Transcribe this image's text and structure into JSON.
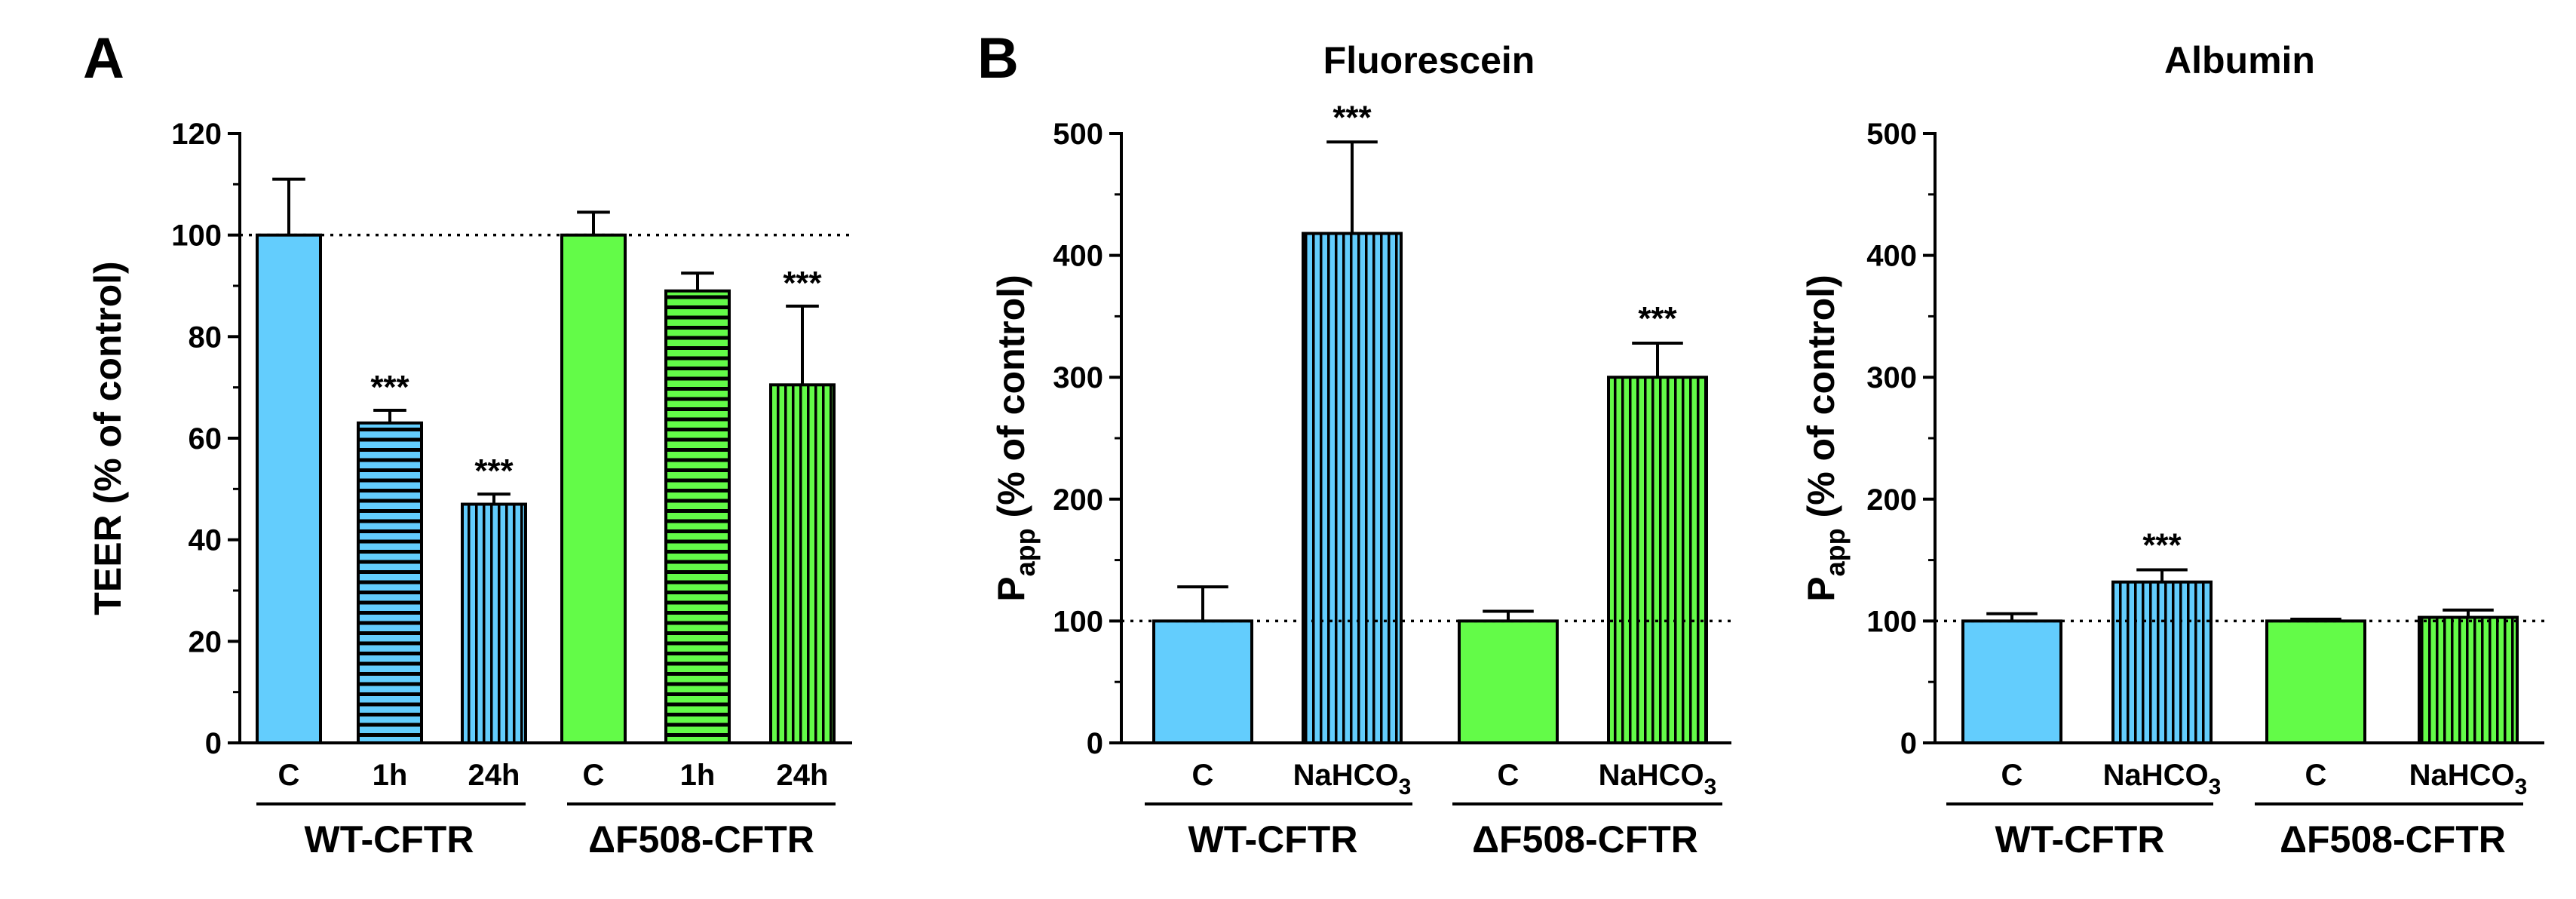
{
  "colors": {
    "WT": "#63cdfd",
    "dF508": "#63fb48",
    "edge": "#000000"
  },
  "chart_data": [
    {
      "panel": "A",
      "type": "bar",
      "title": "",
      "ylabel": "TEER (% of control)",
      "ylim": [
        0,
        120
      ],
      "yticks": [
        0,
        20,
        40,
        60,
        80,
        100,
        120
      ],
      "reference_line": 100,
      "categories": [
        "C",
        "1h",
        "24h",
        "C",
        "1h",
        "24h"
      ],
      "groups": [
        {
          "label": "WT-CFTR",
          "bars": [
            0,
            1,
            2
          ]
        },
        {
          "label": "ΔF508-CFTR",
          "bars": [
            3,
            4,
            5
          ]
        }
      ],
      "values": [
        100,
        63,
        47,
        100,
        89,
        70.5
      ],
      "errors": [
        11,
        2.5,
        2,
        4.5,
        3.5,
        15.5
      ],
      "fill": [
        "WT",
        "WT",
        "WT",
        "dF508",
        "dF508",
        "dF508"
      ],
      "pattern": [
        "solid",
        "horizontal",
        "vertical",
        "solid",
        "horizontal",
        "vertical"
      ],
      "significance": [
        "",
        "***",
        "***",
        "",
        "",
        "***"
      ]
    },
    {
      "panel": "B",
      "type": "bar",
      "title": "Fluorescein",
      "ylabel": "Papp (% of control)",
      "ylim": [
        0,
        500
      ],
      "yticks": [
        0,
        100,
        200,
        300,
        400,
        500
      ],
      "reference_line": 100,
      "categories": [
        "C",
        "NaHCO3",
        "C",
        "NaHCO3"
      ],
      "groups": [
        {
          "label": "WT-CFTR",
          "bars": [
            0,
            1
          ]
        },
        {
          "label": "ΔF508-CFTR",
          "bars": [
            2,
            3
          ]
        }
      ],
      "values": [
        100,
        418,
        100,
        300
      ],
      "errors": [
        28,
        75,
        8,
        28
      ],
      "fill": [
        "WT",
        "WT",
        "dF508",
        "dF508"
      ],
      "pattern": [
        "solid",
        "vertical",
        "solid",
        "vertical"
      ],
      "significance": [
        "",
        "***",
        "",
        "***"
      ]
    },
    {
      "panel": "",
      "type": "bar",
      "title": "Albumin",
      "ylabel": "Papp (% of control)",
      "ylim": [
        0,
        500
      ],
      "yticks": [
        0,
        100,
        200,
        300,
        400,
        500
      ],
      "reference_line": 100,
      "categories": [
        "C",
        "NaHCO3",
        "C",
        "NaHCO3"
      ],
      "groups": [
        {
          "label": "WT-CFTR",
          "bars": [
            0,
            1
          ]
        },
        {
          "label": "ΔF508-CFTR",
          "bars": [
            2,
            3
          ]
        }
      ],
      "values": [
        100,
        132,
        100,
        103
      ],
      "errors": [
        6,
        10,
        1.5,
        6
      ],
      "fill": [
        "WT",
        "WT",
        "dF508",
        "dF508"
      ],
      "pattern": [
        "solid",
        "vertical",
        "solid",
        "vertical"
      ],
      "significance": [
        "",
        "***",
        "",
        ""
      ]
    }
  ]
}
